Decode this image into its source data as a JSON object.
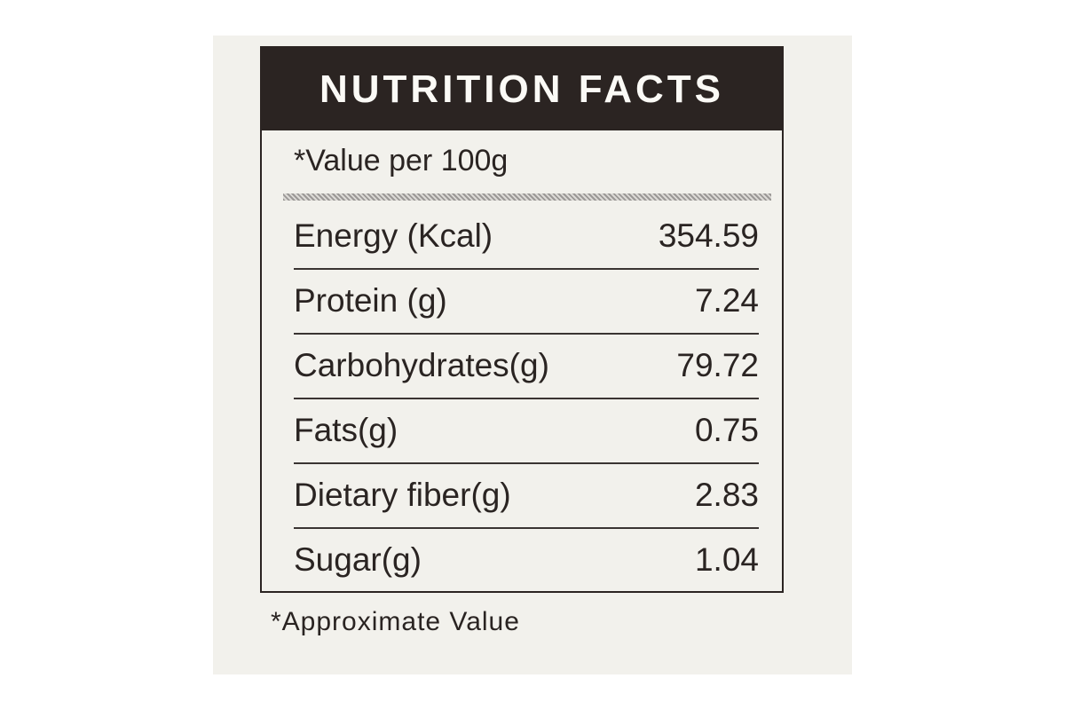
{
  "header": {
    "title": "NUTRITION FACTS",
    "subtitle": "*Value per 100g"
  },
  "table": {
    "rows": [
      [
        "Energy (Kcal)",
        "354.59"
      ],
      [
        "Protein (g)",
        "7.24"
      ],
      [
        "Carbohydrates(g)",
        "79.72"
      ],
      [
        "Fats(g)",
        "0.75"
      ],
      [
        "Dietary fiber(g)",
        "2.83"
      ],
      [
        "Sugar(g)",
        "1.04"
      ]
    ]
  },
  "footnote": "*Approximate Value"
}
